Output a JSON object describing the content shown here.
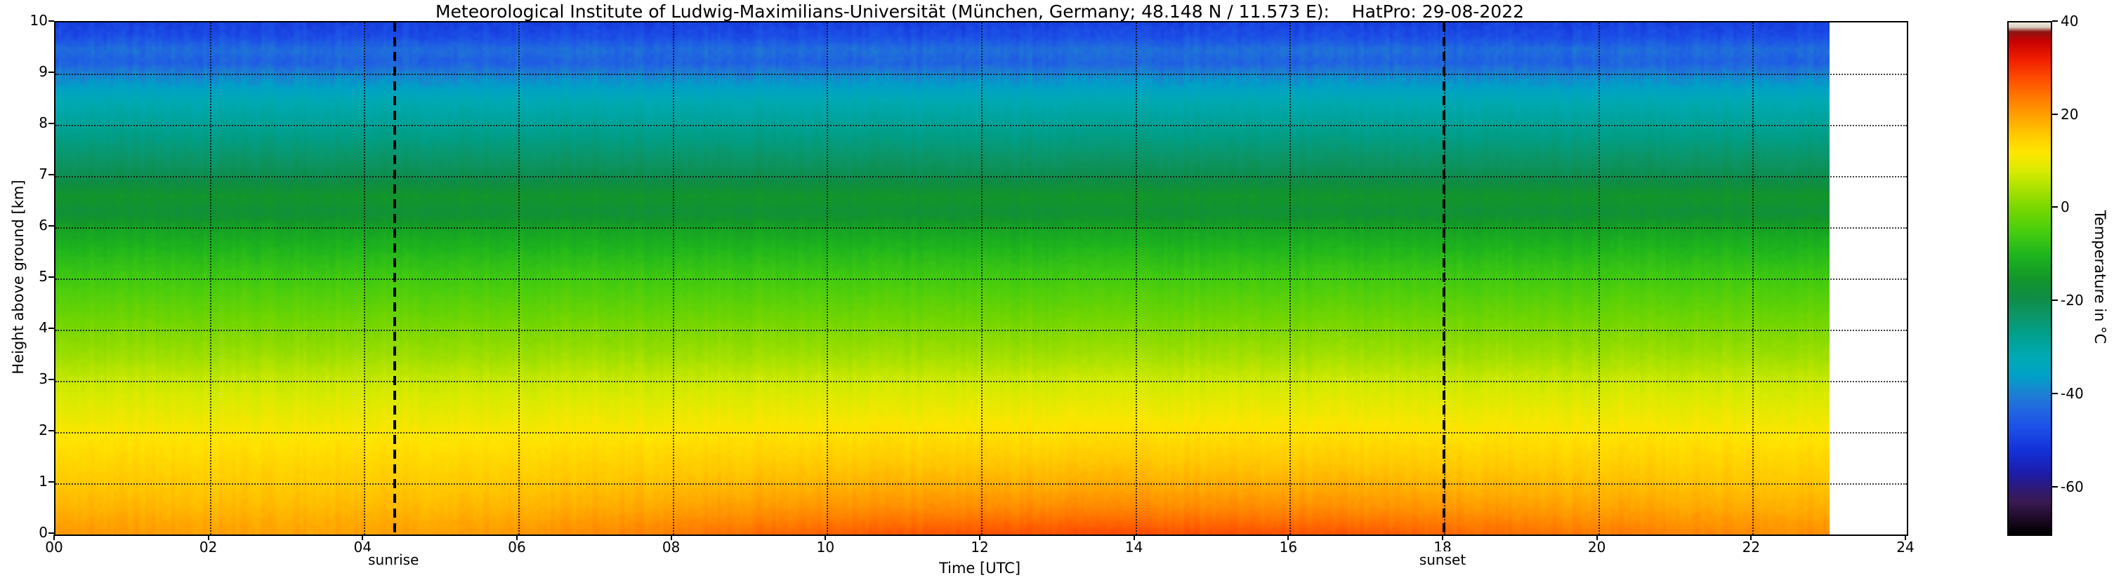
{
  "title": "Meteorological Institute of Ludwig-Maximilians-Universität (München, Germany; 48.148 N / 11.573 E):    HatPro: 29-08-2022",
  "axes": {
    "xlabel": "Time [UTC]",
    "ylabel": "Height above ground [km]",
    "cbar_label": "Temperature in  °C",
    "x_tick_values": [
      0,
      2,
      4,
      6,
      8,
      10,
      12,
      14,
      16,
      18,
      20,
      22,
      24
    ],
    "x_tick_labels": [
      "00",
      "02",
      "04",
      "06",
      "08",
      "10",
      "12",
      "14",
      "16",
      "18",
      "20",
      "22",
      "24"
    ],
    "y_tick_values": [
      0,
      1,
      2,
      3,
      4,
      5,
      6,
      7,
      8,
      9,
      10
    ],
    "y_tick_labels": [
      "0",
      "1",
      "2",
      "3",
      "4",
      "5",
      "6",
      "7",
      "8",
      "9",
      "10"
    ],
    "cbar_tick_values": [
      40,
      20,
      0,
      -20,
      -40,
      -60
    ],
    "cbar_tick_labels": [
      "40",
      "20",
      "0",
      "-20",
      "-40",
      "-60"
    ]
  },
  "annotations": {
    "sunrise_label": "sunrise",
    "sunset_label": "sunset"
  },
  "chart_data": {
    "type": "heatmap",
    "title": "Meteorological Institute of Ludwig-Maximilians-Universität (München, Germany; 48.148 N / 11.573 E):    HatPro: 29-08-2022",
    "xlabel": "Time [UTC]",
    "ylabel": "Height above ground [km]",
    "colorbar_label": "Temperature in °C",
    "x_range_hours_utc": [
      0,
      24
    ],
    "data_end_hour_utc": 23,
    "height_range_km": [
      0,
      10
    ],
    "temperature_scale_c": [
      -70,
      40
    ],
    "sunrise_utc": 4.4,
    "sunset_utc": 18.0,
    "grid": "dotted",
    "legend_position": "colorbar-right",
    "profile_heights_km": [
      0,
      0.5,
      1,
      1.5,
      2,
      2.5,
      3,
      3.5,
      4,
      4.5,
      5,
      5.5,
      6,
      6.3,
      6.6,
      7,
      7.5,
      8,
      8.5,
      9,
      9.25,
      9.5,
      9.75,
      10
    ],
    "profile_temps_c": [
      24,
      20,
      17,
      14.5,
      12,
      9.5,
      7,
      3.5,
      0.5,
      -2.5,
      -5.5,
      -9,
      -13,
      -17,
      -15,
      -20,
      -24,
      -28,
      -32,
      -39,
      -44,
      -42,
      -47,
      -49
    ],
    "surface_diurnal_delta_c": [
      -3,
      -3.5,
      -4,
      -4.2,
      -4.2,
      -4,
      -3.2,
      -2,
      -0.5,
      0.8,
      1.8,
      2.6,
      3.2,
      3.5,
      3.5,
      3.3,
      3,
      2.4,
      1.6,
      0.6,
      -0.5,
      -1.2,
      -2,
      -2.5
    ],
    "diurnal_decay_height_km": 1.0,
    "colormap_stops": [
      [
        -70,
        "#000000"
      ],
      [
        -67,
        "#1a0822"
      ],
      [
        -63,
        "#3a1a52"
      ],
      [
        -60,
        "#2d1a7a"
      ],
      [
        -57,
        "#1c1ca8"
      ],
      [
        -52,
        "#1430d8"
      ],
      [
        -47,
        "#1c50e8"
      ],
      [
        -43,
        "#2068e0"
      ],
      [
        -40,
        "#1e7ed2"
      ],
      [
        -36,
        "#00a0c8"
      ],
      [
        -32,
        "#00aab4"
      ],
      [
        -27,
        "#00a08c"
      ],
      [
        -23,
        "#0c9668"
      ],
      [
        -19,
        "#0f8c46"
      ],
      [
        -15,
        "#12962a"
      ],
      [
        -10,
        "#1eb41e"
      ],
      [
        -5,
        "#46cd0f"
      ],
      [
        0,
        "#78d700"
      ],
      [
        4,
        "#a5e100"
      ],
      [
        8,
        "#d7eb00"
      ],
      [
        12,
        "#ffe600"
      ],
      [
        16,
        "#ffc800"
      ],
      [
        20,
        "#ffa000"
      ],
      [
        24,
        "#ff7800"
      ],
      [
        28,
        "#ff4b00"
      ],
      [
        32,
        "#f01e00"
      ],
      [
        36,
        "#c80000"
      ],
      [
        38,
        "#8c1414"
      ],
      [
        39,
        "#d8d0c0"
      ],
      [
        40,
        "#efe9df"
      ]
    ]
  }
}
